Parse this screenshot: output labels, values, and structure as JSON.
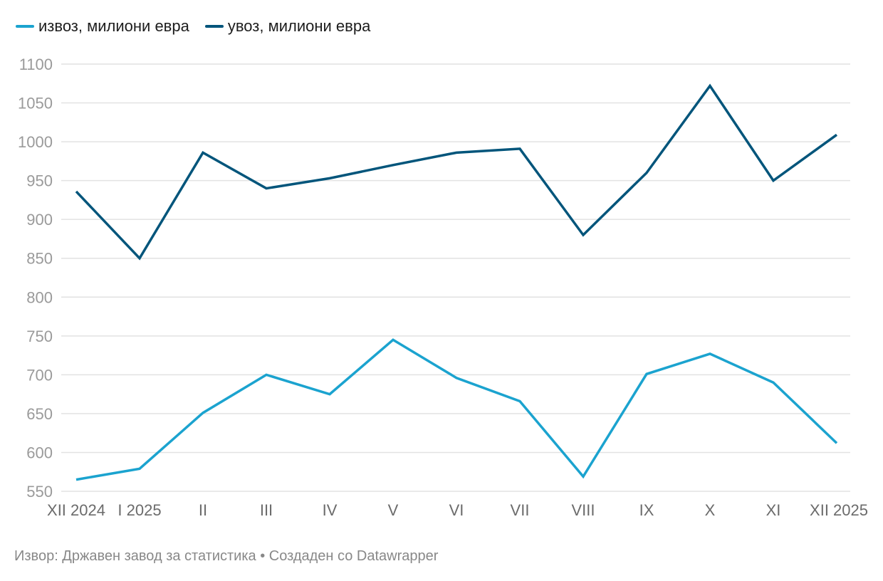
{
  "chart_data": {
    "type": "line",
    "title": "",
    "xlabel": "",
    "ylabel": "",
    "categories": [
      "XII 2024",
      "I 2025",
      "II",
      "III",
      "IV",
      "V",
      "VI",
      "VII",
      "VIII",
      "IX",
      "X",
      "XI",
      "XII 2025"
    ],
    "series": [
      {
        "name": "извоз, милиони евра",
        "color": "#1ba3cf",
        "values": [
          565,
          579,
          651,
          700,
          675,
          745,
          696,
          666,
          569,
          701,
          727,
          690,
          612
        ]
      },
      {
        "name": "увоз, милиони евра",
        "color": "#02557b",
        "values": [
          936,
          850,
          986,
          940,
          953,
          970,
          986,
          991,
          880,
          960,
          1072,
          950,
          1009
        ]
      }
    ],
    "ylim": [
      550,
      1100
    ],
    "yticks": [
      1100,
      1050,
      1000,
      950,
      900,
      850,
      800,
      750,
      700,
      650,
      600,
      550
    ],
    "grid": true,
    "legend_position": "top-left"
  },
  "footer": {
    "text": "Извор: Државен завод за статистика • Создаден со Datawrapper"
  }
}
